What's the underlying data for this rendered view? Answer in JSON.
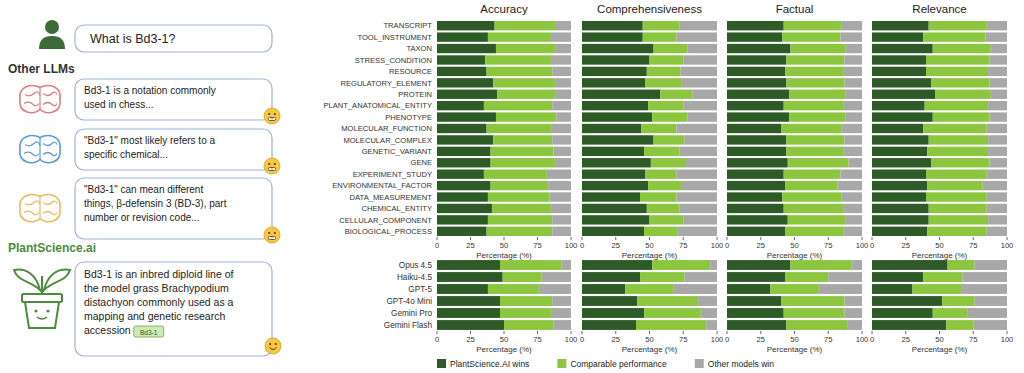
{
  "chart_data": [
    {
      "type": "bar",
      "title": "Accuracy",
      "orientation": "horizontal",
      "stacked": true,
      "legend": "bottom",
      "categories": [
        "TRANSCRIPT",
        "TOOL_INSTRUMENT",
        "TAXON",
        "STRESS_CONDITION",
        "RESOURCE",
        "REGULATORY_ELEMENT",
        "PROTEIN",
        "PLANT_ANATOMICAL_ENTITY",
        "PHENOTYPE",
        "MOLECULAR_FUNCTION",
        "MOLECULAR_COMPLEX",
        "GENETIC_VARIANT",
        "GENE",
        "EXPERIMENT_STUDY",
        "ENVIRONMENTAL_FACTOR",
        "DATA_MEASUREMENT",
        "CHEMICAL_ENTITY",
        "CELLULAR_COMPONENT",
        "BIOLOGICAL_PROCESS"
      ],
      "series": [
        {
          "name": "PlantScience.AI wins",
          "color": "#2d5a27",
          "values": [
            43,
            38,
            44,
            36,
            37,
            42,
            45,
            35,
            44,
            37,
            42,
            40,
            40,
            35,
            40,
            38,
            41,
            38,
            37
          ]
        },
        {
          "name": "Comparable performance",
          "color": "#8cc63f",
          "values": [
            45,
            47,
            44,
            49,
            49,
            46,
            43,
            51,
            45,
            48,
            44,
            47,
            48,
            47,
            43,
            46,
            44,
            48,
            49
          ]
        },
        {
          "name": "Other models win",
          "color": "#a8a8a8",
          "values": [
            12,
            15,
            12,
            15,
            14,
            12,
            12,
            14,
            11,
            15,
            14,
            13,
            12,
            18,
            17,
            16,
            15,
            14,
            14
          ]
        }
      ],
      "xlim": [
        0,
        100
      ],
      "xticks": [
        0,
        25,
        50,
        75,
        100
      ],
      "xlabel": "Percentage (%)"
    },
    {
      "type": "bar",
      "title": "Comprehensiveness",
      "orientation": "horizontal",
      "stacked": true,
      "tick_labels": "x",
      "categories": [
        "TRANSCRIPT",
        "TOOL_INSTRUMENT",
        "TAXON",
        "STRESS_CONDITION",
        "RESOURCE",
        "REGULATORY_ELEMENT",
        "PROTEIN",
        "PLANT_ANATOMICAL_ENTITY",
        "PHENOTYPE",
        "MOLECULAR_FUNCTION",
        "MOLECULAR_COMPLEX",
        "GENETIC_VARIANT",
        "GENE",
        "EXPERIMENT_STUDY",
        "ENVIRONMENTAL_FACTOR",
        "DATA_MEASUREMENT",
        "CHEMICAL_ENTITY",
        "CELLULAR_COMPONENT",
        "BIOLOGICAL_PROCESS"
      ],
      "series": [
        {
          "name": "PlantScience.AI wins",
          "color": "#2d5a27",
          "values": [
            45,
            45,
            53,
            50,
            48,
            47,
            58,
            49,
            52,
            44,
            53,
            46,
            51,
            47,
            49,
            43,
            48,
            50,
            46
          ]
        },
        {
          "name": "Comparable performance",
          "color": "#8cc63f",
          "values": [
            27,
            25,
            25,
            25,
            25,
            27,
            24,
            26,
            26,
            26,
            23,
            26,
            26,
            23,
            25,
            27,
            24,
            25,
            25
          ]
        },
        {
          "name": "Other models win",
          "color": "#a8a8a8",
          "values": [
            28,
            30,
            22,
            25,
            27,
            26,
            18,
            25,
            22,
            30,
            24,
            28,
            23,
            30,
            26,
            30,
            28,
            25,
            29
          ]
        }
      ],
      "xlim": [
        0,
        100
      ],
      "xticks": [
        0,
        25,
        50,
        75,
        100
      ],
      "xlabel": "Percentage (%)"
    },
    {
      "type": "bar",
      "title": "Factual",
      "orientation": "horizontal",
      "stacked": true,
      "tick_labels": "x",
      "categories": [
        "TRANSCRIPT",
        "TOOL_INSTRUMENT",
        "TAXON",
        "STRESS_CONDITION",
        "RESOURCE",
        "REGULATORY_ELEMENT",
        "PROTEIN",
        "PLANT_ANATOMICAL_ENTITY",
        "PHENOTYPE",
        "MOLECULAR_FUNCTION",
        "MOLECULAR_COMPLEX",
        "GENETIC_VARIANT",
        "GENE",
        "EXPERIMENT_STUDY",
        "ENVIRONMENTAL_FACTOR",
        "DATA_MEASUREMENT",
        "CHEMICAL_ENTITY",
        "CELLULAR_COMPONENT",
        "BIOLOGICAL_PROCESS"
      ],
      "series": [
        {
          "name": "PlantScience.AI wins",
          "color": "#2d5a27",
          "values": [
            42,
            41,
            47,
            44,
            43,
            44,
            46,
            42,
            46,
            40,
            44,
            44,
            45,
            42,
            43,
            41,
            42,
            45,
            43
          ]
        },
        {
          "name": "Comparable performance",
          "color": "#8cc63f",
          "values": [
            43,
            43,
            41,
            43,
            43,
            43,
            42,
            44,
            42,
            45,
            43,
            42,
            45,
            42,
            39,
            44,
            44,
            43,
            43
          ]
        },
        {
          "name": "Other models win",
          "color": "#a8a8a8",
          "values": [
            15,
            16,
            12,
            13,
            14,
            13,
            12,
            14,
            12,
            15,
            13,
            14,
            10,
            16,
            18,
            15,
            14,
            12,
            14
          ]
        }
      ],
      "xlim": [
        0,
        100
      ],
      "xticks": [
        0,
        25,
        50,
        75,
        100
      ],
      "xlabel": "Percentage (%)"
    },
    {
      "type": "bar",
      "title": "Relevance",
      "orientation": "horizontal",
      "stacked": true,
      "tick_labels": "x",
      "categories": [
        "TRANSCRIPT",
        "TOOL_INSTRUMENT",
        "TAXON",
        "STRESS_CONDITION",
        "RESOURCE",
        "REGULATORY_ELEMENT",
        "PROTEIN",
        "PLANT_ANATOMICAL_ENTITY",
        "PHENOTYPE",
        "MOLECULAR_FUNCTION",
        "MOLECULAR_COMPLEX",
        "GENETIC_VARIANT",
        "GENE",
        "EXPERIMENT_STUDY",
        "ENVIRONMENTAL_FACTOR",
        "DATA_MEASUREMENT",
        "CHEMICAL_ENTITY",
        "CELLULAR_COMPONENT",
        "BIOLOGICAL_PROCESS"
      ],
      "series": [
        {
          "name": "PlantScience.AI wins",
          "color": "#2d5a27",
          "values": [
            42,
            38,
            45,
            40,
            40,
            44,
            47,
            39,
            45,
            38,
            42,
            41,
            44,
            40,
            41,
            40,
            42,
            42,
            41
          ]
        },
        {
          "name": "Comparable performance",
          "color": "#8cc63f",
          "values": [
            43,
            46,
            43,
            47,
            46,
            43,
            41,
            47,
            42,
            47,
            44,
            45,
            43,
            45,
            41,
            45,
            43,
            44,
            44
          ]
        },
        {
          "name": "Other models win",
          "color": "#a8a8a8",
          "values": [
            15,
            16,
            12,
            13,
            14,
            13,
            12,
            14,
            13,
            15,
            14,
            14,
            13,
            15,
            18,
            15,
            15,
            14,
            15
          ]
        }
      ],
      "xlim": [
        0,
        100
      ],
      "xticks": [
        0,
        25,
        50,
        75,
        100
      ],
      "xlabel": "Percentage (%)"
    },
    {
      "type": "bar",
      "orientation": "horizontal",
      "stacked": true,
      "categories": [
        "Opus 4.5",
        "Haiku-4.5",
        "GPT-5",
        "GPT-4o Mini",
        "Gemini Pro",
        "Gemini Flash"
      ],
      "series": [
        {
          "name": "PlantScience.AI wins",
          "color": "#2d5a27",
          "values": [
            47,
            49,
            38,
            47,
            47,
            50
          ]
        },
        {
          "name": "Comparable performance",
          "color": "#8cc63f",
          "values": [
            46,
            29,
            38,
            39,
            38,
            37
          ]
        },
        {
          "name": "Other models win",
          "color": "#a8a8a8",
          "values": [
            7,
            22,
            24,
            14,
            15,
            13
          ]
        }
      ],
      "xlim": [
        0,
        100
      ],
      "xticks": [
        0,
        25,
        50,
        75,
        100
      ],
      "xlabel": "Percentage (%)"
    },
    {
      "type": "bar",
      "orientation": "horizontal",
      "stacked": true,
      "tick_labels": "x",
      "categories": [
        "Opus 4.5",
        "Haiku-4.5",
        "GPT-5",
        "GPT-4o Mini",
        "Gemini Pro",
        "Gemini Flash"
      ],
      "series": [
        {
          "name": "PlantScience.AI wins",
          "color": "#2d5a27",
          "values": [
            52,
            43,
            32,
            41,
            46,
            40
          ]
        },
        {
          "name": "Comparable performance",
          "color": "#8cc63f",
          "values": [
            43,
            33,
            36,
            45,
            42,
            52
          ]
        },
        {
          "name": "Other models win",
          "color": "#a8a8a8",
          "values": [
            5,
            24,
            32,
            14,
            12,
            8
          ]
        }
      ],
      "xlim": [
        0,
        100
      ],
      "xticks": [
        0,
        25,
        50,
        75,
        100
      ],
      "xlabel": "Percentage (%)"
    },
    {
      "type": "bar",
      "orientation": "horizontal",
      "stacked": true,
      "tick_labels": "x",
      "categories": [
        "Opus 4.5",
        "Haiku-4.5",
        "GPT-5",
        "GPT-4o Mini",
        "Gemini Pro",
        "Gemini Flash"
      ],
      "series": [
        {
          "name": "PlantScience.AI wins",
          "color": "#2d5a27",
          "values": [
            47,
            43,
            32,
            40,
            42,
            44
          ]
        },
        {
          "name": "Comparable performance",
          "color": "#8cc63f",
          "values": [
            45,
            32,
            36,
            47,
            45,
            45
          ]
        },
        {
          "name": "Other models win",
          "color": "#a8a8a8",
          "values": [
            8,
            25,
            32,
            13,
            13,
            11
          ]
        }
      ],
      "xlim": [
        0,
        100
      ],
      "xticks": [
        0,
        25,
        50,
        75,
        100
      ],
      "xlabel": "Percentage (%)"
    },
    {
      "type": "bar",
      "orientation": "horizontal",
      "stacked": true,
      "tick_labels": "x",
      "categories": [
        "Opus 4.5",
        "Haiku-4.5",
        "GPT-5",
        "GPT-4o Mini",
        "Gemini Pro",
        "Gemini Flash"
      ],
      "series": [
        {
          "name": "PlantScience.AI wins",
          "color": "#2d5a27",
          "values": [
            56,
            38,
            30,
            52,
            45,
            55
          ]
        },
        {
          "name": "Comparable performance",
          "color": "#8cc63f",
          "values": [
            20,
            29,
            36,
            24,
            26,
            20
          ]
        },
        {
          "name": "Other models win",
          "color": "#a8a8a8",
          "values": [
            24,
            33,
            34,
            24,
            29,
            25
          ]
        }
      ],
      "xlim": [
        0,
        100
      ],
      "xticks": [
        0,
        25,
        50,
        75,
        100
      ],
      "xlabel": "Percentage (%)"
    }
  ],
  "illustration": {
    "question": "What is Bd3-1?",
    "other_heading": "Other LLMs",
    "other_answers": [
      [
        "Bd3-1 is a notation commonly",
        "used in chess..."
      ],
      [
        "\"Bd3-1\" most likely refers to a",
        "specific chemical..."
      ],
      [
        "\"Bd3-1\" can mean different",
        "things, β-defensin 3 (BD-3),  part",
        "number or revision code..."
      ]
    ],
    "brand": "PlantScience.ai",
    "answer": [
      "Bd3-1 is an inbred diploid line of",
      "the model grass Brachypodium",
      "distachyon commonly used as a",
      "mapping and genetic research",
      "accession"
    ],
    "answer_tag": "Bd3-1"
  }
}
